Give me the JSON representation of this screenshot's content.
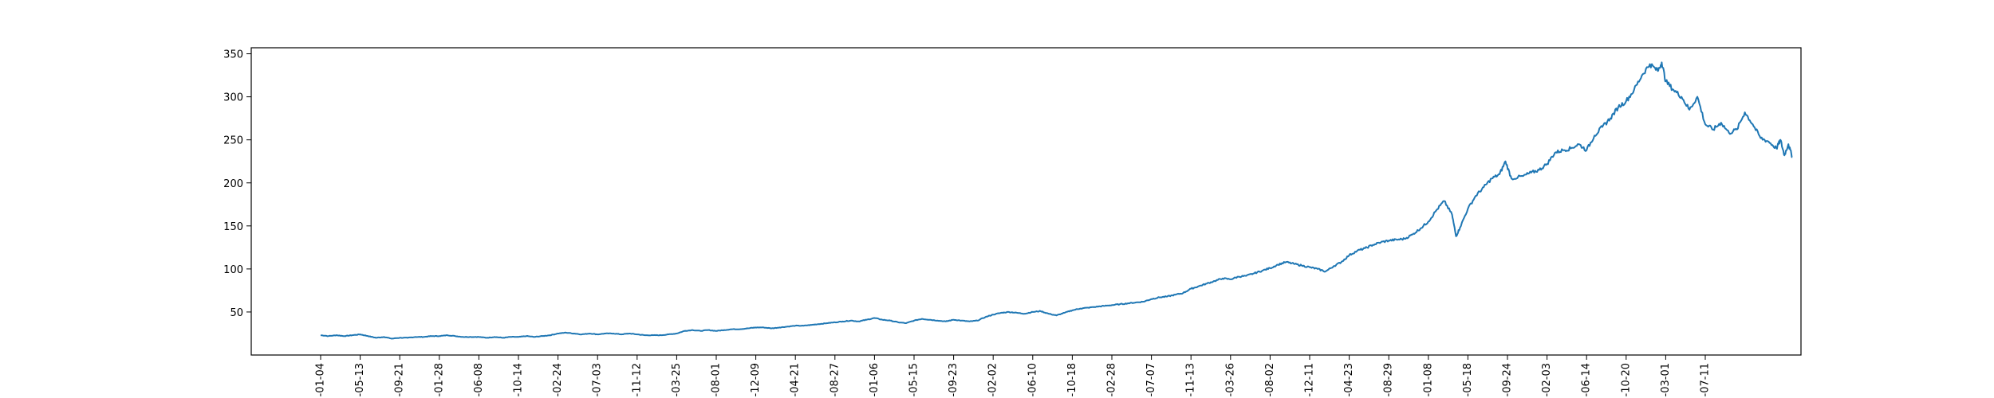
{
  "colors": {
    "line": "#1f77b4",
    "axis": "#000000",
    "background": "#ffffff"
  },
  "chart_data": {
    "type": "line",
    "title": "",
    "xlabel": "",
    "ylabel": "",
    "grid": false,
    "ylim": [
      0,
      357
    ],
    "yticks": [
      50,
      100,
      150,
      200,
      250,
      300,
      350
    ],
    "xticks": [
      "-01-04",
      "-05-13",
      "-09-21",
      "-01-28",
      "-06-08",
      "-10-14",
      "-02-24",
      "-07-03",
      "-11-12",
      "-03-25",
      "-08-01",
      "-12-09",
      "-04-21",
      "-08-27",
      "-01-06",
      "-05-15",
      "-09-23",
      "-02-02",
      "-06-10",
      "-10-18",
      "-02-28",
      "-07-07",
      "-11-13",
      "-03-26",
      "-08-02",
      "-12-11",
      "-04-23",
      "-08-29",
      "-01-08",
      "-05-18",
      "-09-24",
      "-02-03",
      "-06-14",
      "-10-20",
      "-03-01",
      "-07-11"
    ],
    "series": [
      {
        "values": [
          [
            0,
            23
          ],
          [
            0.2,
            22
          ],
          [
            0.4,
            23
          ],
          [
            0.6,
            22
          ],
          [
            0.8,
            23
          ],
          [
            1.0,
            24
          ],
          [
            1.2,
            22
          ],
          [
            1.4,
            20
          ],
          [
            1.6,
            21
          ],
          [
            1.8,
            19
          ],
          [
            2.0,
            20
          ],
          [
            2.2,
            20
          ],
          [
            2.4,
            21
          ],
          [
            2.6,
            21
          ],
          [
            2.8,
            22
          ],
          [
            3.0,
            22
          ],
          [
            3.2,
            23
          ],
          [
            3.4,
            22
          ],
          [
            3.6,
            21
          ],
          [
            3.8,
            21
          ],
          [
            4.0,
            21
          ],
          [
            4.2,
            20
          ],
          [
            4.4,
            21
          ],
          [
            4.6,
            20
          ],
          [
            4.8,
            21
          ],
          [
            5.0,
            21
          ],
          [
            5.2,
            22
          ],
          [
            5.4,
            21
          ],
          [
            5.6,
            22
          ],
          [
            5.8,
            23
          ],
          [
            6.0,
            25
          ],
          [
            6.2,
            26
          ],
          [
            6.4,
            25
          ],
          [
            6.6,
            24
          ],
          [
            6.8,
            25
          ],
          [
            7.0,
            24
          ],
          [
            7.2,
            25
          ],
          [
            7.4,
            25
          ],
          [
            7.6,
            24
          ],
          [
            7.8,
            25
          ],
          [
            8.0,
            24
          ],
          [
            8.2,
            23
          ],
          [
            8.4,
            23
          ],
          [
            8.6,
            23
          ],
          [
            8.8,
            24
          ],
          [
            9.0,
            25
          ],
          [
            9.2,
            28
          ],
          [
            9.4,
            29
          ],
          [
            9.6,
            28
          ],
          [
            9.8,
            29
          ],
          [
            10.0,
            28
          ],
          [
            10.2,
            29
          ],
          [
            10.4,
            30
          ],
          [
            10.6,
            30
          ],
          [
            10.8,
            31
          ],
          [
            11.0,
            32
          ],
          [
            11.2,
            32
          ],
          [
            11.4,
            31
          ],
          [
            11.6,
            32
          ],
          [
            11.8,
            33
          ],
          [
            12.0,
            34
          ],
          [
            12.2,
            34
          ],
          [
            12.4,
            35
          ],
          [
            12.6,
            36
          ],
          [
            12.8,
            37
          ],
          [
            13.0,
            38
          ],
          [
            13.2,
            39
          ],
          [
            13.4,
            40
          ],
          [
            13.6,
            39
          ],
          [
            13.8,
            41
          ],
          [
            14.0,
            43
          ],
          [
            14.2,
            41
          ],
          [
            14.4,
            40
          ],
          [
            14.6,
            38
          ],
          [
            14.8,
            37
          ],
          [
            15.0,
            40
          ],
          [
            15.2,
            42
          ],
          [
            15.4,
            41
          ],
          [
            15.6,
            40
          ],
          [
            15.8,
            39
          ],
          [
            16.0,
            41
          ],
          [
            16.2,
            40
          ],
          [
            16.4,
            39
          ],
          [
            16.6,
            40
          ],
          [
            16.8,
            44
          ],
          [
            17.0,
            47
          ],
          [
            17.2,
            49
          ],
          [
            17.4,
            50
          ],
          [
            17.6,
            49
          ],
          [
            17.8,
            48
          ],
          [
            18.0,
            50
          ],
          [
            18.2,
            51
          ],
          [
            18.4,
            48
          ],
          [
            18.6,
            46
          ],
          [
            18.8,
            49
          ],
          [
            19.0,
            52
          ],
          [
            19.2,
            54
          ],
          [
            19.4,
            55
          ],
          [
            19.6,
            56
          ],
          [
            19.8,
            57
          ],
          [
            20.0,
            58
          ],
          [
            20.2,
            59
          ],
          [
            20.4,
            60
          ],
          [
            20.6,
            61
          ],
          [
            20.8,
            62
          ],
          [
            21.0,
            65
          ],
          [
            21.2,
            67
          ],
          [
            21.4,
            68
          ],
          [
            21.6,
            70
          ],
          [
            21.8,
            72
          ],
          [
            22.0,
            77
          ],
          [
            22.2,
            80
          ],
          [
            22.4,
            83
          ],
          [
            22.6,
            86
          ],
          [
            22.8,
            89
          ],
          [
            23.0,
            88
          ],
          [
            23.2,
            91
          ],
          [
            23.4,
            92
          ],
          [
            23.6,
            95
          ],
          [
            23.8,
            98
          ],
          [
            24.0,
            101
          ],
          [
            24.2,
            105
          ],
          [
            24.4,
            108
          ],
          [
            24.6,
            106
          ],
          [
            24.8,
            104
          ],
          [
            25.0,
            102
          ],
          [
            25.2,
            100
          ],
          [
            25.4,
            97
          ],
          [
            25.6,
            103
          ],
          [
            25.8,
            108
          ],
          [
            26.0,
            116
          ],
          [
            26.2,
            121
          ],
          [
            26.4,
            124
          ],
          [
            26.6,
            128
          ],
          [
            26.8,
            131
          ],
          [
            27.0,
            133
          ],
          [
            27.2,
            134
          ],
          [
            27.4,
            135
          ],
          [
            27.6,
            140
          ],
          [
            27.8,
            147
          ],
          [
            28.0,
            155
          ],
          [
            28.2,
            168
          ],
          [
            28.4,
            179
          ],
          [
            28.6,
            163
          ],
          [
            28.7,
            138
          ],
          [
            28.8,
            148
          ],
          [
            29.0,
            170
          ],
          [
            29.2,
            185
          ],
          [
            29.4,
            195
          ],
          [
            29.6,
            205
          ],
          [
            29.8,
            210
          ],
          [
            29.95,
            225
          ],
          [
            30.1,
            205
          ],
          [
            30.4,
            208
          ],
          [
            30.6,
            212
          ],
          [
            30.8,
            215
          ],
          [
            31.0,
            222
          ],
          [
            31.2,
            235
          ],
          [
            31.4,
            238
          ],
          [
            31.6,
            240
          ],
          [
            31.8,
            245
          ],
          [
            32.0,
            238
          ],
          [
            32.2,
            255
          ],
          [
            32.4,
            265
          ],
          [
            32.6,
            275
          ],
          [
            32.8,
            288
          ],
          [
            33.0,
            295
          ],
          [
            33.2,
            308
          ],
          [
            33.4,
            325
          ],
          [
            33.6,
            338
          ],
          [
            33.8,
            330
          ],
          [
            33.9,
            340
          ],
          [
            34.0,
            318
          ],
          [
            34.2,
            308
          ],
          [
            34.4,
            300
          ],
          [
            34.6,
            285
          ],
          [
            34.8,
            300
          ],
          [
            35.0,
            268
          ],
          [
            35.2,
            262
          ],
          [
            35.4,
            270
          ],
          [
            35.6,
            258
          ],
          [
            35.8,
            262
          ],
          [
            36.0,
            282
          ],
          [
            36.2,
            268
          ],
          [
            36.4,
            252
          ],
          [
            36.6,
            248
          ],
          [
            36.8,
            240
          ],
          [
            36.9,
            250
          ],
          [
            37.0,
            232
          ],
          [
            37.1,
            245
          ],
          [
            37.2,
            230
          ]
        ]
      }
    ]
  }
}
